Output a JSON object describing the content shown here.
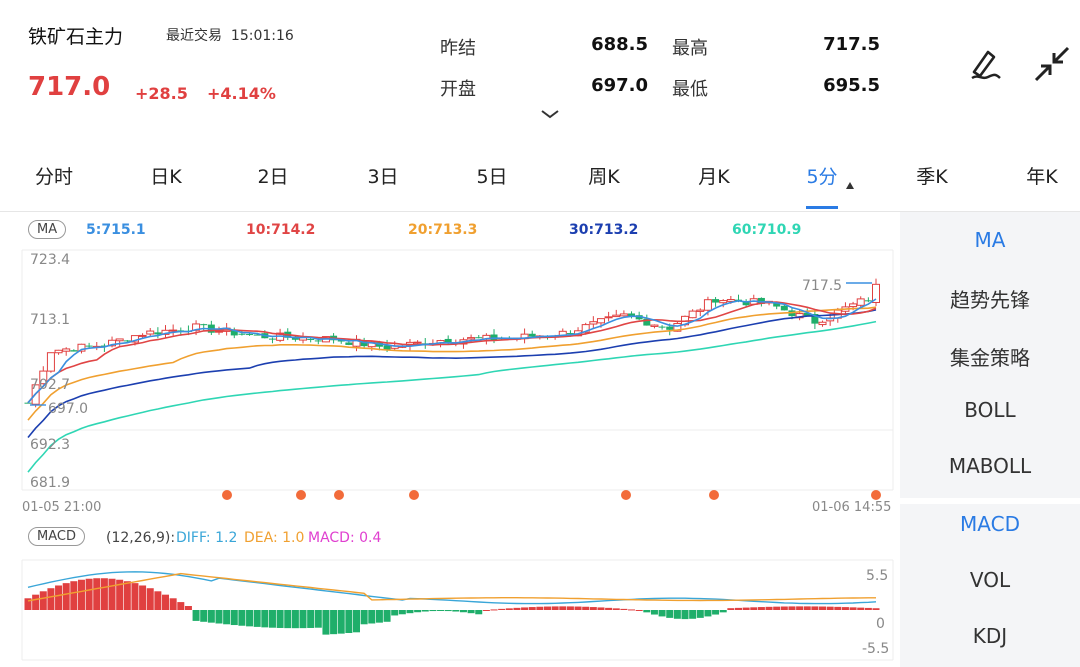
{
  "header": {
    "stock_name": "铁矿石主力",
    "last_trade_label": "最近交易",
    "last_trade_time": "15:01:16",
    "price": "717.0",
    "change": "+28.5",
    "change_pct": "+4.14%",
    "stats": [
      {
        "label": "昨结",
        "value": "688.5"
      },
      {
        "label": "最高",
        "value": "717.5"
      },
      {
        "label": "开盘",
        "value": "697.0"
      },
      {
        "label": "最低",
        "value": "695.5"
      }
    ],
    "icons": [
      "signature-icon",
      "collapse-icon",
      "chevron-down-icon"
    ]
  },
  "tabs": [
    {
      "label": "分时"
    },
    {
      "label": "日K"
    },
    {
      "label": "2日"
    },
    {
      "label": "3日"
    },
    {
      "label": "5日"
    },
    {
      "label": "周K"
    },
    {
      "label": "月K"
    },
    {
      "label": "5分",
      "active": true
    },
    {
      "label": "季K"
    },
    {
      "label": "年K"
    }
  ],
  "main": {
    "indicator_badge": "MA",
    "ma_values": [
      {
        "text": "5:715.1",
        "color": "#3a8fe0"
      },
      {
        "text": "10:714.2",
        "color": "#e04545"
      },
      {
        "text": "20:713.3",
        "color": "#f0a030"
      },
      {
        "text": "30:713.2",
        "color": "#1c3fb0"
      },
      {
        "text": "60:710.9",
        "color": "#2fd6b4"
      }
    ],
    "y_ticks": [
      "723.4",
      "713.1",
      "702.7",
      "692.3",
      "681.9"
    ],
    "max_label": "717.5",
    "min_label": "697.0",
    "time_start": "01-05 21:00",
    "time_end": "01-06 14:55",
    "macd_badge": "MACD",
    "macd_params": "(12,26,9):",
    "diff": "DIFF: 1.2",
    "dea": "DEA: 1.0",
    "macd": "MACD: 0.4",
    "macd_ticks": [
      "5.5",
      "0",
      "-5.5"
    ]
  },
  "sidebar": {
    "top_items": [
      {
        "label": "MA",
        "active": true
      },
      {
        "label": "趋势先锋"
      },
      {
        "label": "集金策略"
      },
      {
        "label": "BOLL"
      },
      {
        "label": "MABOLL"
      }
    ],
    "bottom_items": [
      {
        "label": "MACD",
        "active": true
      },
      {
        "label": "VOL"
      },
      {
        "label": "KDJ"
      }
    ]
  },
  "colors": {
    "up": "#e04040",
    "down": "#1fae6a",
    "accent": "#2a7be4"
  },
  "chart_data": {
    "type": "candlestick",
    "ylim": [
      681.9,
      723.4
    ],
    "ma5_last": 715.1,
    "ma10_last": 714.2,
    "ma20_last": 713.3,
    "ma30_last": 713.2,
    "ma60_last": 710.9,
    "high": 717.5,
    "low": 697.0,
    "macd_ylim": [
      -5.5,
      5.5
    ],
    "diff": 1.2,
    "dea": 1.0,
    "macd": 0.4
  }
}
